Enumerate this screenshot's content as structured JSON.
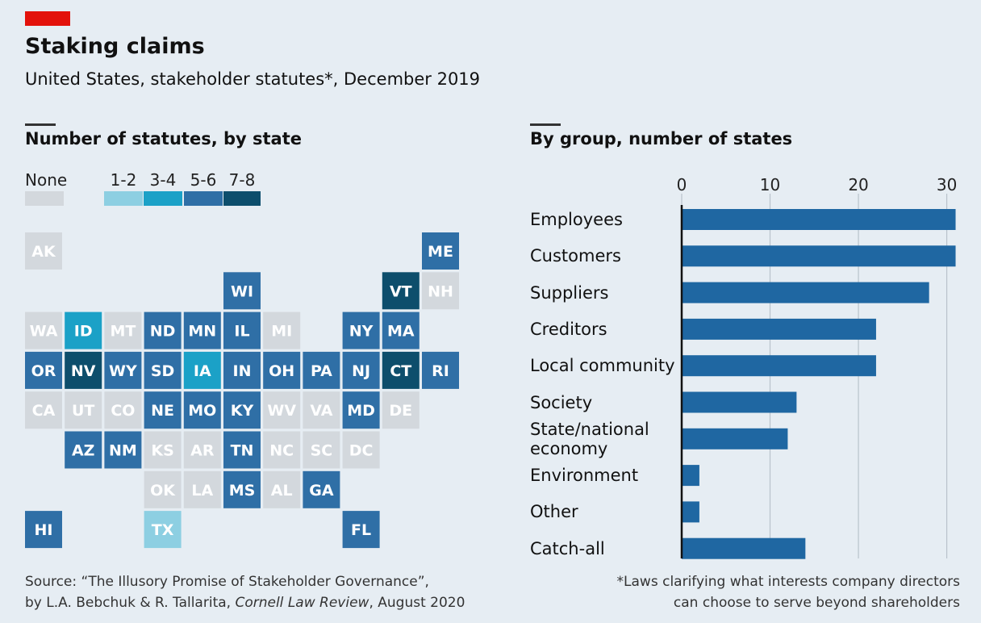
{
  "header": {
    "title": "Staking claims",
    "subtitle": "United States, stakeholder statutes*, December 2019"
  },
  "chart_data": [
    {
      "type": "tilemap",
      "title": "Number of statutes, by state",
      "legend": [
        {
          "label": "None",
          "color": "#d3d8dd"
        },
        {
          "label": "1-2",
          "color": "#8dcfe2"
        },
        {
          "label": "3-4",
          "color": "#1ba1c7"
        },
        {
          "label": "5-6",
          "color": "#2f6fa6"
        },
        {
          "label": "7-8",
          "color": "#0d4e6c"
        }
      ],
      "grid": [
        [
          {
            "state": "AK",
            "bin": "None"
          },
          null,
          null,
          null,
          null,
          null,
          null,
          null,
          null,
          null,
          {
            "state": "ME",
            "bin": "5-6"
          }
        ],
        [
          null,
          null,
          null,
          null,
          null,
          {
            "state": "WI",
            "bin": "5-6"
          },
          null,
          null,
          null,
          {
            "state": "VT",
            "bin": "7-8"
          },
          {
            "state": "NH",
            "bin": "None"
          }
        ],
        [
          {
            "state": "WA",
            "bin": "None"
          },
          {
            "state": "ID",
            "bin": "3-4"
          },
          {
            "state": "MT",
            "bin": "None"
          },
          {
            "state": "ND",
            "bin": "5-6"
          },
          {
            "state": "MN",
            "bin": "5-6"
          },
          {
            "state": "IL",
            "bin": "5-6"
          },
          {
            "state": "MI",
            "bin": "None"
          },
          null,
          {
            "state": "NY",
            "bin": "5-6"
          },
          {
            "state": "MA",
            "bin": "5-6"
          },
          null
        ],
        [
          {
            "state": "OR",
            "bin": "5-6"
          },
          {
            "state": "NV",
            "bin": "7-8"
          },
          {
            "state": "WY",
            "bin": "5-6"
          },
          {
            "state": "SD",
            "bin": "5-6"
          },
          {
            "state": "IA",
            "bin": "3-4"
          },
          {
            "state": "IN",
            "bin": "5-6"
          },
          {
            "state": "OH",
            "bin": "5-6"
          },
          {
            "state": "PA",
            "bin": "5-6"
          },
          {
            "state": "NJ",
            "bin": "5-6"
          },
          {
            "state": "CT",
            "bin": "7-8"
          },
          {
            "state": "RI",
            "bin": "5-6"
          }
        ],
        [
          {
            "state": "CA",
            "bin": "None"
          },
          {
            "state": "UT",
            "bin": "None"
          },
          {
            "state": "CO",
            "bin": "None"
          },
          {
            "state": "NE",
            "bin": "5-6"
          },
          {
            "state": "MO",
            "bin": "5-6"
          },
          {
            "state": "KY",
            "bin": "5-6"
          },
          {
            "state": "WV",
            "bin": "None"
          },
          {
            "state": "VA",
            "bin": "None"
          },
          {
            "state": "MD",
            "bin": "5-6"
          },
          {
            "state": "DE",
            "bin": "None"
          },
          null
        ],
        [
          null,
          {
            "state": "AZ",
            "bin": "5-6"
          },
          {
            "state": "NM",
            "bin": "5-6"
          },
          {
            "state": "KS",
            "bin": "None"
          },
          {
            "state": "AR",
            "bin": "None"
          },
          {
            "state": "TN",
            "bin": "5-6"
          },
          {
            "state": "NC",
            "bin": "None"
          },
          {
            "state": "SC",
            "bin": "None"
          },
          {
            "state": "DC",
            "bin": "None"
          },
          null,
          null
        ],
        [
          null,
          null,
          null,
          {
            "state": "OK",
            "bin": "None"
          },
          {
            "state": "LA",
            "bin": "None"
          },
          {
            "state": "MS",
            "bin": "5-6"
          },
          {
            "state": "AL",
            "bin": "None"
          },
          {
            "state": "GA",
            "bin": "5-6"
          },
          null,
          null,
          null
        ],
        [
          {
            "state": "HI",
            "bin": "5-6"
          },
          null,
          null,
          {
            "state": "TX",
            "bin": "1-2"
          },
          null,
          null,
          null,
          null,
          {
            "state": "FL",
            "bin": "5-6"
          },
          null,
          null
        ]
      ]
    },
    {
      "type": "hbar",
      "title": "By group, number of states",
      "categories": [
        "Employees",
        "Customers",
        "Suppliers",
        "Creditors",
        "Local community",
        "Society",
        "State/national economy",
        "Environment",
        "Other",
        "Catch-all"
      ],
      "values": [
        31,
        31,
        28,
        22,
        22,
        13,
        12,
        2,
        2,
        14
      ],
      "color": "#1f67a2",
      "xlim": [
        0,
        31.5
      ],
      "xticks": [
        0,
        10,
        20,
        30
      ],
      "grid": true
    }
  ],
  "footer": {
    "source": [
      "Source: “The Illusory Promise of Stakeholder Governance”,",
      "by L.A. Bebchuk & R. Tallarita, ",
      "Cornell Law Review",
      ", August 2020"
    ],
    "note": [
      "*Laws clarifying what interests company directors",
      "can choose to serve beyond shareholders"
    ]
  }
}
